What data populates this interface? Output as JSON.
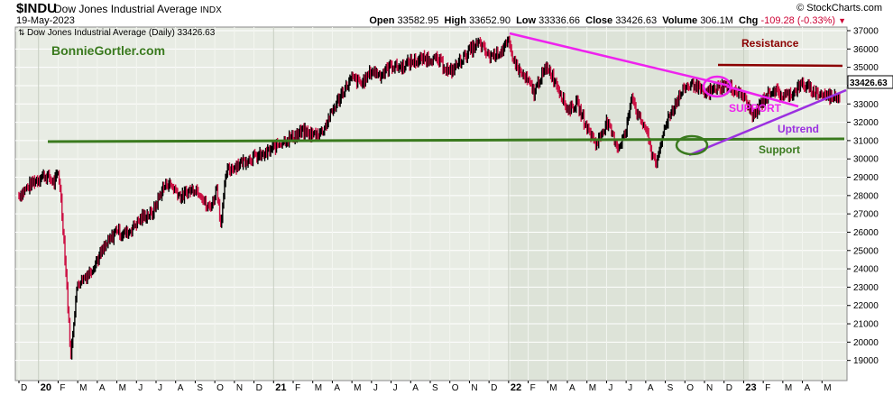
{
  "header": {
    "symbol": "$INDU",
    "name": "Dow Jones Industrial Average",
    "exchange": "INDX",
    "date": "19-May-2023",
    "brand": "© StockCharts.com",
    "open_label": "Open",
    "open": "33582.95",
    "high_label": "High",
    "high": "33652.90",
    "low_label": "Low",
    "low": "33336.66",
    "close_label": "Close",
    "close": "33426.63",
    "volume_label": "Volume",
    "volume": "306.1M",
    "chg_label": "Chg",
    "chg": "-109.28 (-0.33%)"
  },
  "legend": {
    "series_label": "Dow Jones Industrial Average (Daily) 33426.63"
  },
  "colors": {
    "panel_bg": "#e8ece4",
    "band_bg": "#dde3d8",
    "up": "#000000",
    "down": "#cc1144",
    "support": "#3a7a1e",
    "resistance": "#8b0000",
    "trendline": "#ee22ee",
    "uptrend": "#9b30e0"
  },
  "chart_data": {
    "type": "line",
    "ylim": [
      18000,
      37000
    ],
    "yticks": [
      19000,
      20000,
      21000,
      22000,
      23000,
      24000,
      25000,
      26000,
      27000,
      28000,
      29000,
      30000,
      31000,
      32000,
      33000,
      34000,
      35000,
      36000,
      37000
    ],
    "last_value": "33426.63",
    "months": [
      "D",
      "20",
      "F",
      "M",
      "A",
      "M",
      "J",
      "J",
      "A",
      "S",
      "O",
      "N",
      "D",
      "21",
      "F",
      "M",
      "A",
      "M",
      "J",
      "J",
      "A",
      "S",
      "O",
      "N",
      "D",
      "22",
      "F",
      "M",
      "A",
      "M",
      "J",
      "J",
      "A",
      "S",
      "O",
      "N",
      "D",
      "23",
      "F",
      "M",
      "A",
      "M"
    ],
    "x_start": "2019-12",
    "x_end": "2023-05",
    "series": [
      {
        "t": [
          0,
          0.2,
          0.5,
          0.8,
          1.0,
          1.2,
          1.5,
          1.8,
          2.0,
          2.1,
          2.2,
          2.3,
          2.45,
          2.55,
          2.65,
          2.75,
          2.85,
          3.0,
          3.3,
          3.6,
          4.0,
          4.4,
          4.8,
          5.0,
          5.2,
          5.6,
          6.0,
          6.4,
          6.8,
          7.0,
          7.3,
          7.6,
          8.0,
          8.3,
          8.6,
          9.0,
          9.3,
          9.6,
          9.9,
          10.1,
          10.3,
          10.6,
          11.0,
          11.5,
          12.0,
          12.5,
          13.0,
          13.5,
          14.0,
          14.5,
          15.0,
          15.5,
          16.0,
          16.5,
          17.0,
          17.5,
          18.0,
          18.5,
          19.0,
          19.5,
          20.0,
          20.5,
          21.0,
          21.5,
          22.0,
          22.5,
          23.0,
          23.5,
          24.0,
          24.5,
          25.0,
          25.3,
          25.6,
          26.0,
          26.3,
          26.6,
          27.0,
          27.5,
          28.0,
          28.5,
          29.0,
          29.5,
          30.0,
          30.3,
          30.6,
          31.0,
          31.3,
          31.6,
          32.0,
          32.3,
          32.6,
          33.0,
          33.5,
          34.0,
          34.5,
          35.0,
          35.5,
          36.0,
          36.5,
          37.0,
          37.5,
          38.0,
          38.5,
          39.0,
          39.5,
          40.0,
          40.5,
          41.0,
          41.5,
          41.9
        ],
        "v": [
          28000,
          28200,
          28500,
          28800,
          28900,
          29100,
          29000,
          28700,
          29200,
          28500,
          27000,
          25500,
          23000,
          21000,
          19200,
          20500,
          21800,
          23200,
          23500,
          23800,
          24500,
          25200,
          25800,
          26200,
          25900,
          26000,
          26500,
          26900,
          27000,
          27500,
          28300,
          28700,
          28300,
          27900,
          28200,
          28400,
          28100,
          27300,
          27600,
          28500,
          26500,
          29300,
          29600,
          29900,
          30100,
          30200,
          30600,
          31000,
          31200,
          31500,
          31300,
          31500,
          32600,
          33600,
          34400,
          34100,
          34800,
          34600,
          35100,
          35000,
          35300,
          35400,
          35500,
          35300,
          34700,
          35300,
          35900,
          36300,
          35600,
          35800,
          36300,
          35300,
          34700,
          34200,
          33600,
          34400,
          35000,
          34000,
          32700,
          33000,
          31700,
          30800,
          32000,
          31300,
          30600,
          31500,
          33600,
          32300,
          31700,
          30300,
          29800,
          31900,
          33000,
          33900,
          34100,
          33500,
          33800,
          34000,
          33800,
          33400,
          32300,
          33200,
          33800,
          33400,
          33600,
          34100,
          33700,
          33500,
          33400,
          33426.63
        ]
      }
    ],
    "annotations": {
      "resistance": "Resistance",
      "support_upper": "SUPPORT",
      "uptrend": "Uptrend",
      "support_lower": "Support",
      "watermark": "BonnieGortler.com"
    }
  }
}
